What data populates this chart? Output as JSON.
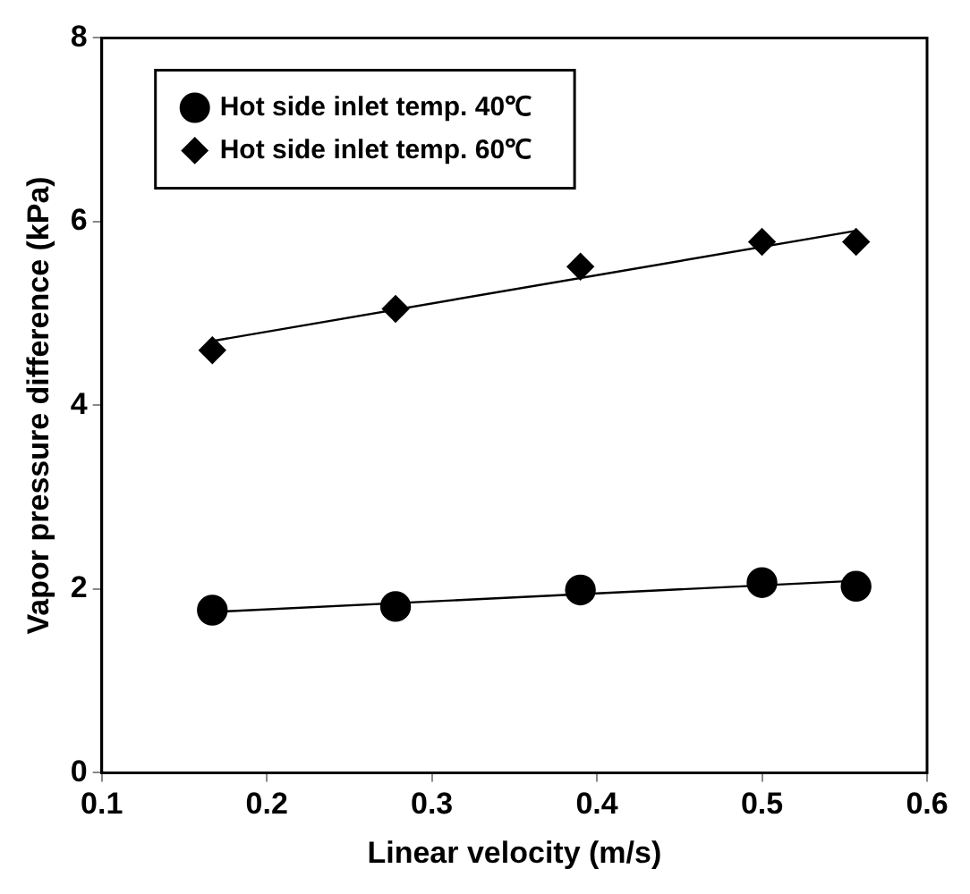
{
  "chart_data": {
    "type": "scatter",
    "xlabel": "Linear velocity (m/s)",
    "ylabel": "Vapor pressure difference (kPa)",
    "xlim": [
      0.1,
      0.6
    ],
    "xticks": [
      0.1,
      0.2,
      0.3,
      0.4,
      0.5,
      0.6
    ],
    "ylim": [
      0,
      8
    ],
    "yticks": [
      0,
      2,
      4,
      6,
      8
    ],
    "grid": false,
    "legend": "top left",
    "series": [
      {
        "name": "Hot side inlet temp. 40℃",
        "color": "#000000",
        "marker": "circle",
        "x": [
          0.167,
          0.278,
          0.39,
          0.5,
          0.557
        ],
        "values": [
          1.77,
          1.81,
          1.99,
          2.07,
          2.03
        ]
      },
      {
        "name": "Hot side inlet temp. 60℃",
        "color": "#000000",
        "marker": "diamond",
        "x": [
          0.167,
          0.278,
          0.39,
          0.5,
          0.557
        ],
        "values": [
          4.6,
          5.05,
          5.51,
          5.78,
          5.78
        ]
      },
      {
        "type": "line",
        "color": "#000000",
        "marker": "none",
        "x": [
          0.167,
          0.557
        ],
        "values": [
          1.75,
          2.09
        ]
      },
      {
        "type": "line",
        "color": "#000000",
        "marker": "none",
        "x": [
          0.167,
          0.557
        ],
        "values": [
          4.7,
          5.9
        ]
      }
    ]
  }
}
